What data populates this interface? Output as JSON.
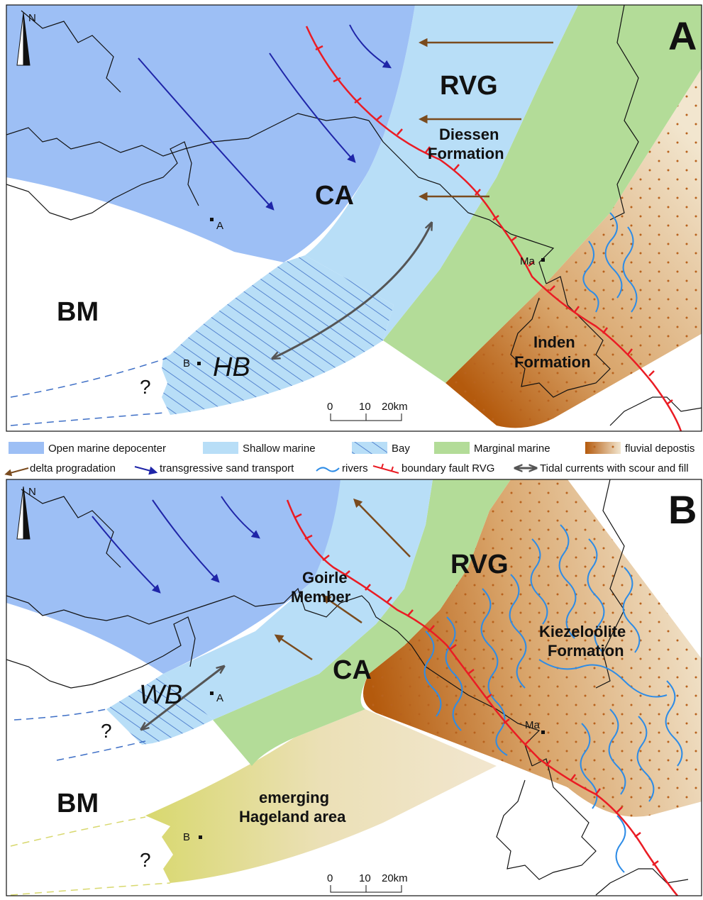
{
  "colors": {
    "open_marine": "#9dbff5",
    "shallow_marine": "#b8def7",
    "bay": "#b8def7",
    "bay_hatch": "#3e6fc6",
    "marginal_marine": "#b3dc98",
    "fluvial_dark": "#b45a0d",
    "fluvial_light": "#ecdcbf",
    "fluvial_dots": "#b8621d",
    "hageland": "#e0dd86",
    "delta_arrow": "#7a4b1e",
    "transgressive_arrow": "#1f25a8",
    "rivers": "#2e8ce6",
    "fault": "#ea1c24",
    "tidal": "#555555",
    "border": "#111111"
  },
  "panel_a": {
    "letter": "A",
    "north": "N",
    "labels": {
      "rvg": "RVG",
      "ca": "CA",
      "bm": "BM",
      "hb": "HB",
      "diessen_1": "Diessen",
      "diessen_2": "Formation",
      "inden_1": "Inden",
      "inden_2": "Formation",
      "site_a": "A",
      "site_b": "B",
      "site_ma": "Ma",
      "question": "?"
    },
    "scale": {
      "t0": "0",
      "t10": "10",
      "t20": "20km"
    }
  },
  "legend": {
    "open_marine": "Open marine depocenter",
    "shallow_marine": "Shallow marine",
    "bay": "Bay",
    "marginal_marine": "Marginal marine",
    "fluvial": "fluvial depostis",
    "delta": "delta progradation",
    "transgressive": "transgressive sand transport",
    "rivers": "rivers",
    "fault": "boundary fault RVG",
    "tidal": "Tidal currents with scour and fill"
  },
  "panel_b": {
    "letter": "B",
    "north": "N",
    "labels": {
      "rvg": "RVG",
      "ca": "CA",
      "bm": "BM",
      "wb": "WB",
      "goirle_1": "Goirle",
      "goirle_2": "Member",
      "kiezel_1": "Kiezeloölite",
      "kiezel_2": "Formation",
      "hageland_1": "emerging",
      "hageland_2": "Hageland area",
      "site_a": "A",
      "site_b": "B",
      "site_ma": "Ma",
      "question": "?"
    },
    "scale": {
      "t0": "0",
      "t10": "10",
      "t20": "20km"
    }
  }
}
